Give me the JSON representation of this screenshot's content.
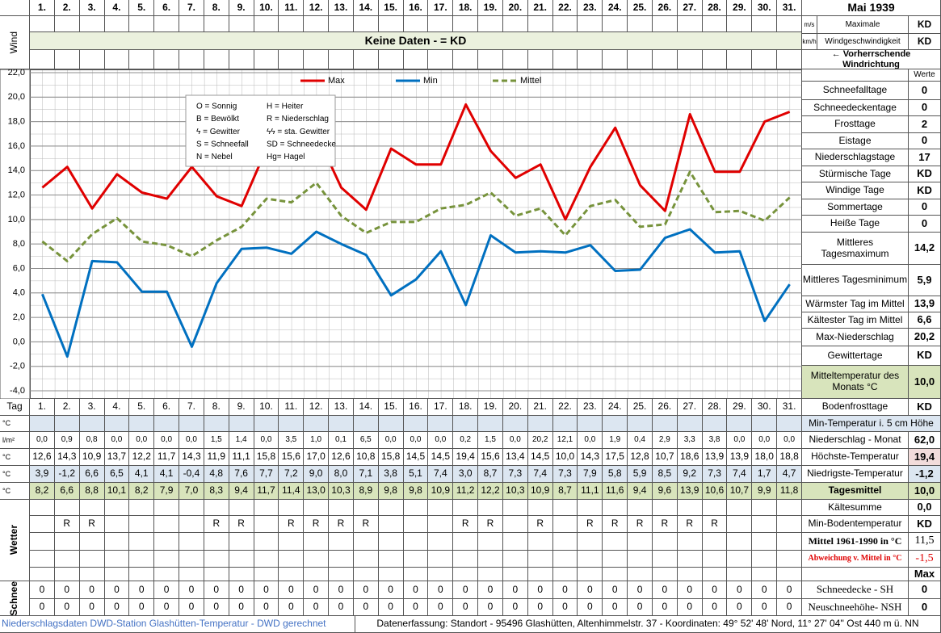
{
  "header": {
    "month": "Mai 1939",
    "wind_label": "Wind",
    "unit_ms": "m/s",
    "unit_kmh": "km/h",
    "max_wind_line1": "Maximale",
    "max_wind_line2": "Windgeschwindigkeit",
    "max_wind_ms": "KD",
    "max_wind_kmh": "KD",
    "no_data": "Keine Daten -  = KD",
    "wind_direction": "← Vorherrschende Windrichtung",
    "values_header": "Werte"
  },
  "chart_data": {
    "type": "line",
    "categories": [
      "1.",
      "2.",
      "3.",
      "4.",
      "5.",
      "6.",
      "7.",
      "8.",
      "9.",
      "10.",
      "11.",
      "12.",
      "13.",
      "14.",
      "15.",
      "16.",
      "17.",
      "18.",
      "19.",
      "20.",
      "21.",
      "22.",
      "23.",
      "24.",
      "25.",
      "26.",
      "27.",
      "28.",
      "29.",
      "30.",
      "31."
    ],
    "series": [
      {
        "name": "Max",
        "color": "#e00000",
        "style": "solid",
        "values": [
          12.6,
          14.3,
          10.9,
          13.7,
          12.2,
          11.7,
          14.3,
          11.9,
          11.1,
          15.8,
          15.6,
          17.0,
          12.6,
          10.8,
          15.8,
          14.5,
          14.5,
          19.4,
          15.6,
          13.4,
          14.5,
          10.0,
          14.3,
          17.5,
          12.8,
          10.7,
          18.6,
          13.9,
          13.9,
          18.0,
          18.8
        ],
        "value_labels": [
          "12,6",
          "14,3",
          "10,9",
          "13,7",
          "12,2",
          "11,7",
          "14,3",
          "11,9",
          "11,1",
          "15,8",
          "15,6",
          "17,0",
          "12,6",
          "10,8",
          "15,8",
          "14,5",
          "14,5",
          "19,4",
          "15,6",
          "13,4",
          "14,5",
          "10,0",
          "14,3",
          "17,5",
          "12,8",
          "10,7",
          "18,6",
          "13,9",
          "13,9",
          "18,0",
          "18,8"
        ]
      },
      {
        "name": "Min",
        "color": "#0070c0",
        "style": "solid",
        "values": [
          3.9,
          -1.2,
          6.6,
          6.5,
          4.1,
          4.1,
          -0.4,
          4.8,
          7.6,
          7.7,
          7.2,
          9.0,
          8.0,
          7.1,
          3.8,
          5.1,
          7.4,
          3.0,
          8.7,
          7.3,
          7.4,
          7.3,
          7.9,
          5.8,
          5.9,
          8.5,
          9.2,
          7.3,
          7.4,
          1.7,
          4.7
        ],
        "value_labels": [
          "3,9",
          "-1,2",
          "6,6",
          "6,5",
          "4,1",
          "4,1",
          "-0,4",
          "4,8",
          "7,6",
          "7,7",
          "7,2",
          "9,0",
          "8,0",
          "7,1",
          "3,8",
          "5,1",
          "7,4",
          "3,0",
          "8,7",
          "7,3",
          "7,4",
          "7,3",
          "7,9",
          "5,8",
          "5,9",
          "8,5",
          "9,2",
          "7,3",
          "7,4",
          "1,7",
          "4,7"
        ]
      },
      {
        "name": "Mittel",
        "color": "#77933c",
        "style": "dashed",
        "values": [
          8.2,
          6.6,
          8.8,
          10.1,
          8.2,
          7.9,
          7.0,
          8.3,
          9.4,
          11.7,
          11.4,
          13.0,
          10.3,
          8.9,
          9.8,
          9.8,
          10.9,
          11.2,
          12.2,
          10.3,
          10.9,
          8.7,
          11.1,
          11.6,
          9.4,
          9.6,
          13.9,
          10.6,
          10.7,
          9.9,
          11.8
        ],
        "value_labels": [
          "8,2",
          "6,6",
          "8,8",
          "10,1",
          "8,2",
          "7,9",
          "7,0",
          "8,3",
          "9,4",
          "11,7",
          "11,4",
          "13,0",
          "10,3",
          "8,9",
          "9,8",
          "9,8",
          "10,9",
          "11,2",
          "12,2",
          "10,3",
          "10,9",
          "8,7",
          "11,1",
          "11,6",
          "9,4",
          "9,6",
          "13,9",
          "10,6",
          "10,7",
          "9,9",
          "11,8"
        ]
      }
    ],
    "ylim": [
      -4,
      22
    ],
    "yticks": [
      {
        "value": -4,
        "label": "-4,0"
      },
      {
        "value": -2,
        "label": "-2,0"
      },
      {
        "value": 0,
        "label": "0,0"
      },
      {
        "value": 2,
        "label": "2,0"
      },
      {
        "value": 4,
        "label": "4,0"
      },
      {
        "value": 6,
        "label": "6,0"
      },
      {
        "value": 8,
        "label": "8,0"
      },
      {
        "value": 10,
        "label": "10,0"
      },
      {
        "value": 12,
        "label": "12,0"
      },
      {
        "value": 14,
        "label": "14,0"
      },
      {
        "value": 16,
        "label": "16,0"
      },
      {
        "value": 18,
        "label": "18,0"
      },
      {
        "value": 20,
        "label": "20,0"
      },
      {
        "value": 22,
        "label": "22,0"
      }
    ],
    "grid": true,
    "key": [
      "O = Sonnig",
      "H = Heiter",
      "B = Bewölkt",
      "R = Niederschlag",
      "ϟ = Gewitter",
      "ϟϟ = sta. Gewitter",
      "S = Schneefall",
      "SD = Schneedecke",
      "N = Nebel",
      "Hg= Hagel"
    ]
  },
  "stats": [
    {
      "label": "Schneefalltage",
      "value": 0
    },
    {
      "label": "Schneedeckentage",
      "value": 0
    },
    {
      "label": "Frosttage",
      "value": 2
    },
    {
      "label": "Eistage",
      "value": 0
    },
    {
      "label": "Niederschlagstage",
      "value": 17
    },
    {
      "label": "Stürmische Tage",
      "value": "KD"
    },
    {
      "label": "Windige Tage",
      "value": "KD"
    },
    {
      "label": "Sommertage",
      "value": 0
    },
    {
      "label": "Heiße Tage",
      "value": 0
    },
    {
      "label": "Mittleres Tagesmaximum",
      "value": "14,2"
    },
    {
      "label": "Mittleres Tagesminimum",
      "value": "5,9"
    },
    {
      "label": "Wärmster Tag im Mittel",
      "value": "13,9"
    },
    {
      "label": "Kältester Tag im Mittel",
      "value": "6,6"
    },
    {
      "label": "Max-Niederschlag",
      "value": "20,2"
    },
    {
      "label": "Gewittertage",
      "value": "KD"
    },
    {
      "label": "Mitteltemperatur des Monats °C",
      "value": "10,0"
    },
    {
      "label": "Bodenfrosttage",
      "value": "KD"
    }
  ],
  "table": {
    "day_label": "Tag",
    "weather_label": "Wetter",
    "snow_label": "Schnee",
    "rows": [
      {
        "unit": "°C",
        "summary": {
          "label": "Min-Temperatur i. 5 cm Höhe"
        }
      },
      {
        "unit": "l/m²",
        "cells": [
          "0,0",
          "0,9",
          "0,8",
          "0,0",
          "0,0",
          "0,0",
          "0,0",
          "1,5",
          "1,4",
          "0,0",
          "3,5",
          "1,0",
          "0,1",
          "6,5",
          "0,0",
          "0,0",
          "0,0",
          "0,2",
          "1,5",
          "0,0",
          "20,2",
          "12,1",
          "0,0",
          "1,9",
          "0,4",
          "2,9",
          "3,3",
          "3,8",
          "0,0",
          "0,0",
          "0,0"
        ],
        "summary": {
          "label": "Niederschlag - Monat",
          "value": "62,0"
        }
      },
      {
        "unit": "°C",
        "summary": {
          "label": "Höchste-Temperatur",
          "value": "19,4"
        }
      },
      {
        "unit": "°C",
        "summary": {
          "label": "Niedrigste-Temperatur",
          "value": "-1,2"
        }
      },
      {
        "unit": "°C",
        "summary": {
          "label": "Tagesmittel",
          "value": "10,0"
        }
      },
      {
        "summary": {
          "label": "Kältesumme",
          "value": "0,0"
        }
      },
      {
        "cells": [
          null,
          "R",
          "R",
          null,
          null,
          null,
          null,
          "R",
          "R",
          null,
          "R",
          "R",
          "R",
          "R",
          null,
          null,
          null,
          "R",
          "R",
          null,
          "R",
          null,
          "R",
          "R",
          "R",
          "R",
          "R",
          "R",
          null,
          null,
          null
        ],
        "summary": {
          "label": "Min-Bodentemperatur",
          "value": "KD"
        }
      },
      {
        "summary": {
          "label": "Mittel 1961-1990 in °C",
          "value": "11,5"
        }
      },
      {
        "summary": {
          "label": "Abweichung v. Mittel in °C",
          "value": "-1,5"
        }
      },
      {
        "summary": {
          "value": "Max"
        }
      },
      {
        "cells": [
          0,
          0,
          0,
          0,
          0,
          0,
          0,
          0,
          0,
          0,
          0,
          0,
          0,
          0,
          0,
          0,
          0,
          0,
          0,
          0,
          0,
          0,
          0,
          0,
          0,
          0,
          0,
          0,
          0,
          0,
          0
        ],
        "summary": {
          "label": "Schneedecke -  SH",
          "value": 0
        }
      },
      {
        "cells": [
          0,
          0,
          0,
          0,
          0,
          0,
          0,
          0,
          0,
          0,
          0,
          0,
          0,
          0,
          0,
          0,
          0,
          0,
          0,
          0,
          0,
          0,
          0,
          0,
          0,
          0,
          0,
          0,
          0,
          0,
          0
        ],
        "summary": {
          "label": "Neuschneehöhe- NSH",
          "value": 0
        }
      }
    ]
  },
  "footer": {
    "source": "Niederschlagsdaten DWD-Station Glashütten-Temperatur -  DWD gerechnet",
    "location": "Datenerfassung: Standort -  95496 Glashütten, Altenhimmelstr. 37 - Koordinaten: 49° 52' 48' Nord,  11° 27' 04'' Ost  440 m ü. NN"
  }
}
